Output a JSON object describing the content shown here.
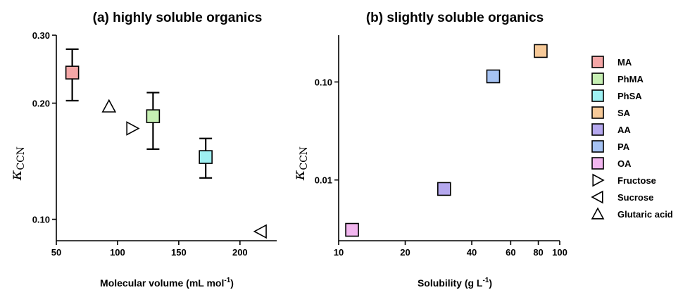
{
  "chart_data": [
    {
      "type": "scatter",
      "title": "(a) highly soluble organics",
      "xlabel": "Molecular volume (mL mol",
      "xlabel_sup": "-1",
      "xlabel_end": ")",
      "ylabel_main": "κ",
      "ylabel_sub": "CCN",
      "xlim": [
        50,
        230
      ],
      "ylim": [
        0.088,
        0.3
      ],
      "yscale": "log",
      "xticks": [
        50,
        100,
        150,
        200
      ],
      "xtick_labels": [
        "50",
        "100",
        "150",
        "200"
      ],
      "yticks": [
        0.1,
        0.2,
        0.3
      ],
      "ytick_labels": [
        "0.10",
        "0.20",
        "0.30"
      ],
      "points": [
        {
          "name": "MA",
          "marker": "square",
          "x": 63,
          "y": 0.24,
          "err_low": 0.203,
          "err_high": 0.276,
          "color": "#f4a6a6"
        },
        {
          "name": "PhMA",
          "marker": "square",
          "x": 129,
          "y": 0.185,
          "err_low": 0.152,
          "err_high": 0.213,
          "color": "#c6efb3"
        },
        {
          "name": "PhSA",
          "marker": "square",
          "x": 172,
          "y": 0.145,
          "err_low": 0.128,
          "err_high": 0.162,
          "color": "#9ef0f2"
        },
        {
          "name": "Glutaric acid",
          "marker": "triangle-up",
          "x": 93,
          "y": 0.196
        },
        {
          "name": "Fructose",
          "marker": "triangle-right",
          "x": 112,
          "y": 0.172
        },
        {
          "name": "Sucrose",
          "marker": "triangle-left",
          "x": 217,
          "y": 0.093
        }
      ]
    },
    {
      "type": "scatter",
      "title": "(b) slightly soluble organics",
      "xlabel": "Solubility (g L",
      "xlabel_sup": "-1",
      "xlabel_end": ")",
      "ylabel_main": "κ",
      "ylabel_sub": "CCN",
      "xscale": "log",
      "yscale": "log",
      "xlim": [
        10,
        100
      ],
      "ylim": [
        0.0024,
        0.3
      ],
      "xticks": [
        10,
        20,
        40,
        60,
        80,
        100
      ],
      "xtick_labels": [
        "10",
        "20",
        "40",
        "60",
        "80",
        "100"
      ],
      "yticks": [
        0.01,
        0.1
      ],
      "ytick_labels": [
        "0.01",
        "0.10"
      ],
      "points": [
        {
          "name": "OA",
          "marker": "square",
          "x": 11.5,
          "y": 0.0031,
          "color": "#f2b6ef"
        },
        {
          "name": "AA",
          "marker": "square",
          "x": 30,
          "y": 0.0081,
          "color": "#b5a8ee"
        },
        {
          "name": "PA",
          "marker": "square",
          "x": 50,
          "y": 0.114,
          "color": "#a6c3f3"
        },
        {
          "name": "SA",
          "marker": "square",
          "x": 82,
          "y": 0.207,
          "color": "#f6c998"
        }
      ]
    }
  ],
  "legend": {
    "placement": "right",
    "items": [
      {
        "label": "MA",
        "marker": "square",
        "color": "#f4a6a6"
      },
      {
        "label": "PhMA",
        "marker": "square",
        "color": "#c6efb3"
      },
      {
        "label": "PhSA",
        "marker": "square",
        "color": "#9ef0f2"
      },
      {
        "label": "SA",
        "marker": "square",
        "color": "#f6c998"
      },
      {
        "label": "AA",
        "marker": "square",
        "color": "#b5a8ee"
      },
      {
        "label": "PA",
        "marker": "square",
        "color": "#a6c3f3"
      },
      {
        "label": "OA",
        "marker": "square",
        "color": "#f2b6ef"
      },
      {
        "label": "Fructose",
        "marker": "triangle-right"
      },
      {
        "label": "Sucrose",
        "marker": "triangle-left"
      },
      {
        "label": "Glutaric acid",
        "marker": "triangle-up"
      }
    ]
  }
}
